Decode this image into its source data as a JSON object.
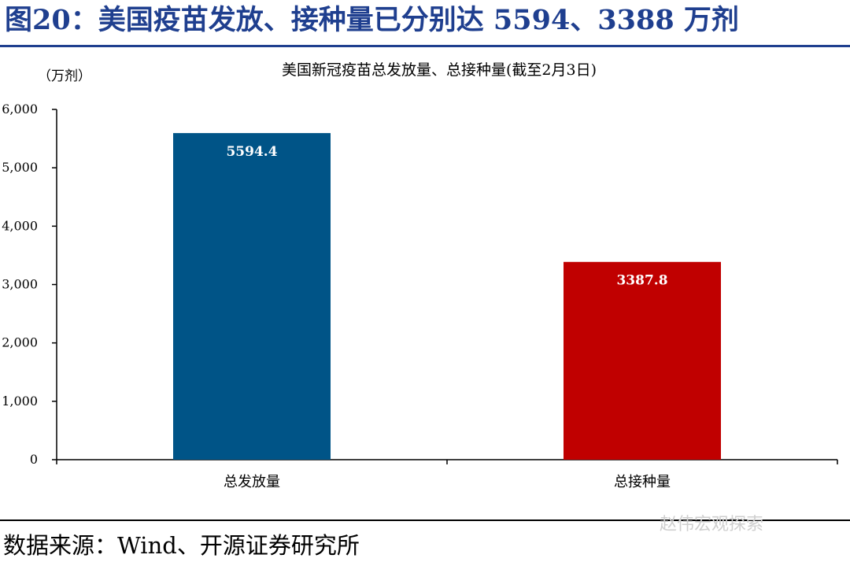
{
  "figure_title": "图20：美国疫苗发放、接种量已分别达 5594、3388 万剂",
  "source": "数据来源：Wind、开源证券研究所",
  "watermark": "赵伟宏观探索",
  "colors": {
    "title": "#1f3f8f",
    "bar_distributed": "#005487",
    "bar_administered": "#c00000"
  },
  "chart_data": {
    "type": "bar",
    "title": "美国新冠疫苗总发放量、总接种量(截至2月3日)",
    "unit": "（万剂）",
    "categories": [
      "总发放量",
      "总接种量"
    ],
    "values": [
      5594.4,
      3387.8
    ],
    "data_labels": [
      "5594.4",
      "3387.8"
    ],
    "bar_colors": [
      "#005487",
      "#c00000"
    ],
    "ylim": [
      0,
      6000
    ],
    "yticks": [
      0,
      1000,
      2000,
      3000,
      4000,
      5000,
      6000
    ],
    "ytick_labels": [
      "0",
      "1,000",
      "2,000",
      "3,000",
      "4,000",
      "5,000",
      "6,000"
    ],
    "xlabel": "",
    "ylabel": "",
    "grid": false,
    "legend": "none"
  }
}
